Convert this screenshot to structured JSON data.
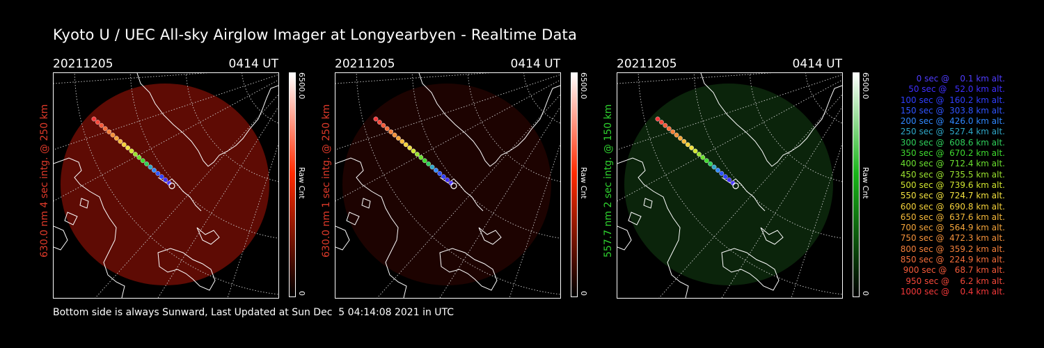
{
  "title": "Kyoto U / UEC All-sky Airglow Imager at Longyearbyen - Realtime Data",
  "panels": [
    {
      "date": "20211205",
      "time": "0414 UT",
      "side_label": "630.0 nm 4 sec intg. @ 250 km",
      "label_color": "#e03a2a",
      "cbar_top": "6500.0",
      "cbar_mid": "Raw Cnt",
      "cbar_bottom": "0",
      "cbar_color": "#ff2a00",
      "glow_color": "#6e0d05",
      "glow_opacity": 0.85
    },
    {
      "date": "20211205",
      "time": "0414 UT",
      "side_label": "630.0 nm 1 sec intg. @ 250 km",
      "label_color": "#e03a2a",
      "cbar_top": "6500.0",
      "cbar_mid": "Raw Cnt",
      "cbar_bottom": "0",
      "cbar_color": "#ff2a00",
      "glow_color": "#2a0402",
      "glow_opacity": 0.7
    },
    {
      "date": "20211205",
      "time": "0414 UT",
      "side_label": "557.7 nm 2 sec intg. @ 150 km",
      "label_color": "#2fd32f",
      "cbar_top": "6500.0",
      "cbar_mid": "Raw Cnt",
      "cbar_bottom": "0",
      "cbar_color": "#19b419",
      "glow_color": "#0d2a0d",
      "glow_opacity": 0.85
    }
  ],
  "legend": [
    {
      "text": "   0 sec @    0.1 km alt.",
      "color": "#4f3cff"
    },
    {
      "text": "  50 sec @   52.0 km alt.",
      "color": "#3f2fff"
    },
    {
      "text": " 100 sec @  160.2 km alt.",
      "color": "#2f3fff"
    },
    {
      "text": " 150 sec @  303.8 km alt.",
      "color": "#2f55ff"
    },
    {
      "text": " 200 sec @  426.0 km alt.",
      "color": "#2f88ff"
    },
    {
      "text": " 250 sec @  527.4 km alt.",
      "color": "#2fa7c8"
    },
    {
      "text": " 300 sec @  608.6 km alt.",
      "color": "#2fcf5a"
    },
    {
      "text": " 350 sec @  670.2 km alt.",
      "color": "#3fdb2f"
    },
    {
      "text": " 400 sec @  712.4 km alt.",
      "color": "#6ae02f"
    },
    {
      "text": " 450 sec @  735.5 km alt.",
      "color": "#9be22f"
    },
    {
      "text": " 500 sec @  739.6 km alt.",
      "color": "#d0e42f"
    },
    {
      "text": " 550 sec @  724.7 km alt.",
      "color": "#f0e03f"
    },
    {
      "text": " 600 sec @  690.8 km alt.",
      "color": "#f5d23a"
    },
    {
      "text": " 650 sec @  637.6 km alt.",
      "color": "#f5b93a"
    },
    {
      "text": " 700 sec @  564.9 km alt.",
      "color": "#f5a53a"
    },
    {
      "text": " 750 sec @  472.3 km alt.",
      "color": "#f5923a"
    },
    {
      "text": " 800 sec @  359.2 km alt.",
      "color": "#f5803a"
    },
    {
      "text": " 850 sec @  224.9 km alt.",
      "color": "#f56e3a"
    },
    {
      "text": " 900 sec @   68.7 km alt.",
      "color": "#f55a3a"
    },
    {
      "text": " 950 sec @    6.2 km alt.",
      "color": "#f5483a"
    },
    {
      "text": "1000 sec @    0.4 km alt.",
      "color": "#f5383a"
    }
  ],
  "footer": "Bottom side is always Sunward, Last Updated at Sun Dec  5 04:14:08 2021 in UTC"
}
